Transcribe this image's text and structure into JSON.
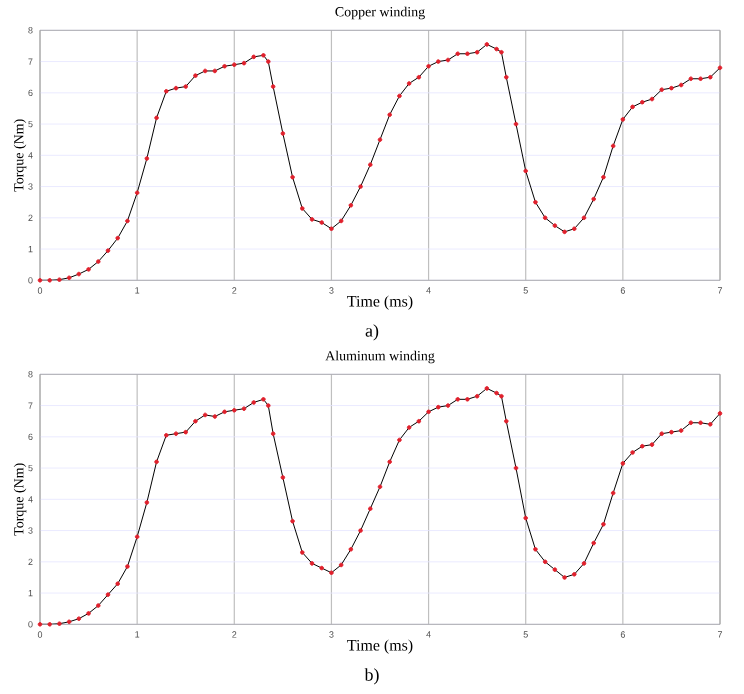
{
  "chart_data": [
    {
      "type": "line",
      "title": "Copper winding",
      "xlabel": "Time (ms)",
      "ylabel": "Torque (Nm)",
      "annotations": [
        "a)"
      ],
      "marker": "circle",
      "grid": true,
      "xlim": [
        0,
        7
      ],
      "ylim": [
        0,
        8
      ],
      "xticks": [
        0,
        1,
        2,
        3,
        4,
        5,
        6,
        7
      ],
      "yticks": [
        0,
        1,
        2,
        3,
        4,
        5,
        6,
        7,
        8
      ],
      "x": [
        0,
        0.1,
        0.2,
        0.3,
        0.4,
        0.5,
        0.6,
        0.7,
        0.8,
        0.9,
        1.0,
        1.1,
        1.2,
        1.3,
        1.4,
        1.5,
        1.6,
        1.7,
        1.8,
        1.9,
        2.0,
        2.1,
        2.2,
        2.3,
        2.35,
        2.4,
        2.5,
        2.6,
        2.7,
        2.8,
        2.9,
        3.0,
        3.1,
        3.2,
        3.3,
        3.4,
        3.5,
        3.6,
        3.7,
        3.8,
        3.9,
        4.0,
        4.1,
        4.2,
        4.3,
        4.4,
        4.5,
        4.6,
        4.7,
        4.75,
        4.8,
        4.9,
        5.0,
        5.1,
        5.2,
        5.3,
        5.4,
        5.5,
        5.6,
        5.7,
        5.8,
        5.9,
        6.0,
        6.1,
        6.2,
        6.3,
        6.4,
        6.5,
        6.6,
        6.7,
        6.8,
        6.9,
        7.0
      ],
      "series": [
        {
          "color": "#e0202c",
          "values": [
            0,
            0,
            0.02,
            0.08,
            0.2,
            0.35,
            0.6,
            0.95,
            1.35,
            1.9,
            2.8,
            3.9,
            5.2,
            6.05,
            6.15,
            6.2,
            6.55,
            6.7,
            6.7,
            6.85,
            6.9,
            6.95,
            7.15,
            7.2,
            7.0,
            6.2,
            4.7,
            3.3,
            2.3,
            1.95,
            1.85,
            1.65,
            1.9,
            2.4,
            3.0,
            3.7,
            4.5,
            5.3,
            5.9,
            6.3,
            6.5,
            6.85,
            7.0,
            7.05,
            7.25,
            7.25,
            7.3,
            7.55,
            7.4,
            7.3,
            6.5,
            5.0,
            3.5,
            2.5,
            2.0,
            1.75,
            1.55,
            1.65,
            2.0,
            2.6,
            3.3,
            4.3,
            5.15,
            5.55,
            5.7,
            5.8,
            6.1,
            6.15,
            6.25,
            6.45,
            6.45,
            6.5,
            6.8
          ]
        }
      ]
    },
    {
      "type": "line",
      "title": "Aluminum winding",
      "xlabel": "Time (ms)",
      "ylabel": "Torque (Nm)",
      "annotations": [
        "b)"
      ],
      "marker": "circle",
      "grid": true,
      "xlim": [
        0,
        7
      ],
      "ylim": [
        0,
        8
      ],
      "xticks": [
        0,
        1,
        2,
        3,
        4,
        5,
        6,
        7
      ],
      "yticks": [
        0,
        1,
        2,
        3,
        4,
        5,
        6,
        7,
        8
      ],
      "x": [
        0,
        0.1,
        0.2,
        0.3,
        0.4,
        0.5,
        0.6,
        0.7,
        0.8,
        0.9,
        1.0,
        1.1,
        1.2,
        1.3,
        1.4,
        1.5,
        1.6,
        1.7,
        1.8,
        1.9,
        2.0,
        2.1,
        2.2,
        2.3,
        2.35,
        2.4,
        2.5,
        2.6,
        2.7,
        2.8,
        2.9,
        3.0,
        3.1,
        3.2,
        3.3,
        3.4,
        3.5,
        3.6,
        3.7,
        3.8,
        3.9,
        4.0,
        4.1,
        4.2,
        4.3,
        4.4,
        4.5,
        4.6,
        4.7,
        4.75,
        4.8,
        4.9,
        5.0,
        5.1,
        5.2,
        5.3,
        5.4,
        5.5,
        5.6,
        5.7,
        5.8,
        5.9,
        6.0,
        6.1,
        6.2,
        6.3,
        6.4,
        6.5,
        6.6,
        6.7,
        6.8,
        6.9,
        7.0
      ],
      "series": [
        {
          "color": "#e0202c",
          "values": [
            0,
            0,
            0.02,
            0.08,
            0.18,
            0.35,
            0.6,
            0.95,
            1.3,
            1.85,
            2.8,
            3.9,
            5.2,
            6.05,
            6.1,
            6.15,
            6.5,
            6.7,
            6.65,
            6.8,
            6.85,
            6.9,
            7.1,
            7.2,
            7.0,
            6.1,
            4.7,
            3.3,
            2.3,
            1.95,
            1.8,
            1.65,
            1.9,
            2.4,
            3.0,
            3.7,
            4.4,
            5.2,
            5.9,
            6.3,
            6.5,
            6.8,
            6.95,
            7.0,
            7.2,
            7.2,
            7.3,
            7.55,
            7.4,
            7.3,
            6.5,
            5.0,
            3.4,
            2.4,
            2.0,
            1.75,
            1.5,
            1.6,
            1.95,
            2.6,
            3.2,
            4.2,
            5.15,
            5.5,
            5.7,
            5.75,
            6.1,
            6.15,
            6.2,
            6.45,
            6.45,
            6.4,
            6.75
          ]
        }
      ]
    }
  ]
}
